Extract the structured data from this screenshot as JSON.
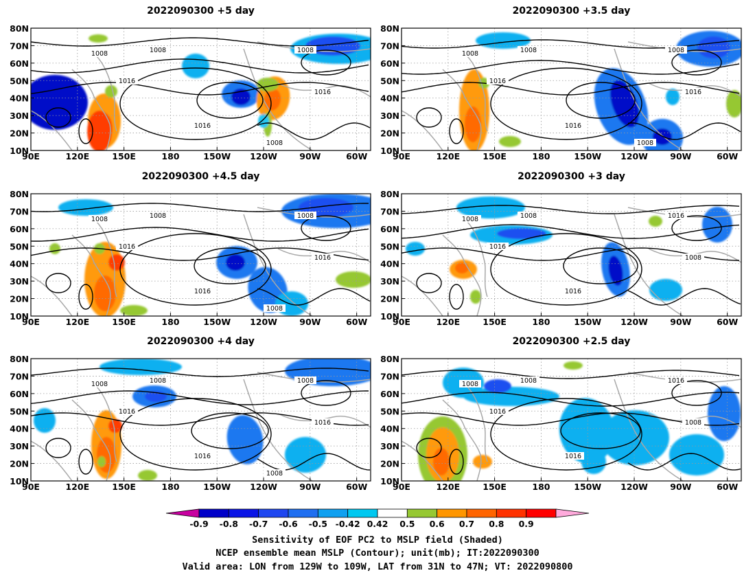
{
  "figure": {
    "panels": [
      {
        "title": "2022090300 +5 day",
        "contour_labels": [
          "1008",
          "1008",
          "1008",
          "1016",
          "1016",
          "1016",
          "1008"
        ]
      },
      {
        "title": "2022090300 +3.5 day",
        "contour_labels": [
          "1008",
          "1008",
          "1008",
          "1016",
          "1016",
          "1016",
          "1008"
        ]
      },
      {
        "title": "2022090300 +4.5 day",
        "contour_labels": [
          "1008",
          "1008",
          "1008",
          "1016",
          "1016",
          "1016",
          "1008"
        ]
      },
      {
        "title": "2022090300 +3 day",
        "contour_labels": [
          "1008",
          "1008",
          "1016",
          "1016",
          "1016",
          "1008"
        ]
      },
      {
        "title": "2022090300 +4 day",
        "contour_labels": [
          "1008",
          "1008",
          "1008",
          "1016",
          "1016",
          "1016",
          "1008"
        ]
      },
      {
        "title": "2022090300 +2.5 day",
        "contour_labels": [
          "1008",
          "1008",
          "1016",
          "1016",
          "1016",
          "1008"
        ]
      }
    ],
    "x_ticks": [
      "90E",
      "120E",
      "150E",
      "180",
      "150W",
      "120W",
      "90W",
      "60W"
    ],
    "y_ticks": [
      "80N",
      "70N",
      "60N",
      "50N",
      "40N",
      "30N",
      "20N",
      "10N"
    ],
    "colorbar": {
      "ticks": [
        "-0.9",
        "-0.8",
        "-0.7",
        "-0.6",
        "-0.5",
        "-0.42",
        "0.42",
        "0.5",
        "0.6",
        "0.7",
        "0.8",
        "0.9"
      ],
      "colors": [
        "#0000c8",
        "#0a14e6",
        "#1e46f0",
        "#1e6ef0",
        "#0fa0f0",
        "#00c8f0",
        "#ffffff",
        "#96c832",
        "#ff9600",
        "#ff6400",
        "#ff3200",
        "#ff0000"
      ],
      "left_arrow_color": "#c800a0",
      "right_arrow_color": "#ffaadc"
    },
    "caption": [
      "Sensitivity of EOF PC2 to MSLP field (Shaded)",
      "NCEP ensemble mean MSLP (Contour); unit(mb); IT:2022090300",
      "Valid area: LON from 129W to 109W, LAT from 31N to 47N; VT: 2022090800"
    ]
  }
}
